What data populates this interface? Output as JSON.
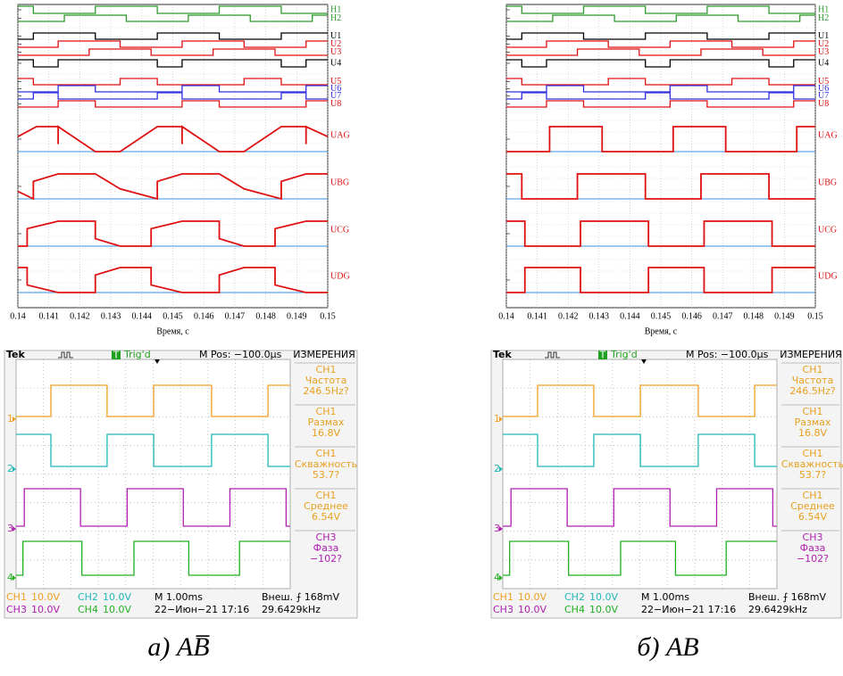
{
  "panels": [
    {
      "caption": "а) AB̅",
      "plot": {
        "type": "line",
        "xlim": [
          0.14,
          0.15
        ],
        "xticks": [
          0.14,
          0.141,
          0.142,
          0.143,
          0.144,
          0.145,
          0.146,
          0.147,
          0.148,
          0.149,
          0.15
        ],
        "xlabel": "Время, c",
        "signals": [
          {
            "name": "H1",
            "color": "#2e9a2e",
            "kind": "digital",
            "start": 1,
            "edges": [
              0.1405,
              0.1425,
              0.1445,
              0.1465,
              0.1485
            ]
          },
          {
            "name": "H2",
            "color": "#2e9a2e",
            "kind": "digital",
            "start": 0,
            "edges": [
              0.1415,
              0.1435,
              0.1455,
              0.1475,
              0.1495
            ]
          },
          {
            "name": "U1",
            "color": "#000000",
            "kind": "digital",
            "start": 0,
            "edges": [
              0.1405,
              0.1425,
              0.1445,
              0.1465,
              0.1485
            ]
          },
          {
            "name": "U2",
            "color": "#e01010",
            "kind": "digital",
            "start": 0,
            "edges": [
              0.1413,
              0.1433,
              0.1453,
              0.1473,
              0.1493
            ]
          },
          {
            "name": "U3",
            "color": "#e01010",
            "kind": "digital",
            "start": 0,
            "edges": [
              0.1423,
              0.1443,
              0.1463,
              0.1483
            ]
          },
          {
            "name": "U4",
            "color": "#000000",
            "kind": "digital",
            "start": 1,
            "edges": [
              0.1405,
              0.1413,
              0.1445,
              0.1453,
              0.1485,
              0.1493
            ]
          },
          {
            "name": "U5",
            "color": "#e01010",
            "kind": "digital",
            "start": 1,
            "edges": [
              0.1405,
              0.1433,
              0.1445,
              0.1473,
              0.1485
            ]
          },
          {
            "name": "U6",
            "color": "#3030e0",
            "kind": "digital",
            "start": 0,
            "edges": [
              0.1413,
              0.1425,
              0.1453,
              0.1465,
              0.1493
            ]
          },
          {
            "name": "U7",
            "color": "#3030e0",
            "kind": "digital",
            "start": 0,
            "edges": [
              0.1405,
              0.1413,
              0.1445,
              0.1453,
              0.1485,
              0.1493
            ]
          },
          {
            "name": "U8",
            "color": "#e01010",
            "kind": "digital",
            "start": 0,
            "edges": [
              0.1413,
              0.1425,
              0.1453,
              0.1465,
              0.1493
            ]
          },
          {
            "name": "UAG",
            "color": "#e01010",
            "kind": "analog",
            "x": [
              0.14,
              0.1406,
              0.1413,
              0.1413,
              0.1413,
              0.1425,
              0.1433,
              0.1445,
              0.1453,
              0.1453,
              0.1453,
              0.1465,
              0.1473,
              0.1485,
              0.1493,
              0.1493,
              0.1493,
              0.15
            ],
            "y": [
              0.6,
              1,
              1,
              0.3,
              1,
              0,
              0,
              1,
              1,
              0.3,
              1,
              0,
              0,
              1,
              1,
              0.3,
              1,
              0.6
            ]
          },
          {
            "name": "UBG",
            "color": "#e01010",
            "kind": "analog",
            "x": [
              0.14,
              0.1405,
              0.1405,
              0.1413,
              0.1425,
              0.1433,
              0.1445,
              0.1445,
              0.1453,
              0.1465,
              0.1473,
              0.1485,
              0.1485,
              0.1493,
              0.15
            ],
            "y": [
              0.3,
              0,
              0.7,
              1,
              1,
              0.4,
              0,
              0.7,
              1,
              1,
              0.4,
              0,
              0.7,
              1,
              1
            ]
          },
          {
            "name": "UCG",
            "color": "#e01010",
            "kind": "analog",
            "x": [
              0.14,
              0.1403,
              0.1403,
              0.1413,
              0.1425,
              0.1425,
              0.1433,
              0.1443,
              0.1443,
              0.1453,
              0.1465,
              0.1465,
              0.1473,
              0.1483,
              0.1483,
              0.1493,
              0.15
            ],
            "y": [
              0,
              0,
              0.7,
              1,
              1,
              0.3,
              0,
              0,
              0.7,
              1,
              1,
              0.3,
              0,
              0,
              0.7,
              1,
              1
            ]
          },
          {
            "name": "UDG",
            "color": "#e01010",
            "kind": "analog",
            "x": [
              0.14,
              0.1403,
              0.1403,
              0.1413,
              0.1425,
              0.1425,
              0.1433,
              0.1443,
              0.1443,
              0.1453,
              0.1465,
              0.1465,
              0.1473,
              0.1483,
              0.1483,
              0.1493,
              0.15
            ],
            "y": [
              1,
              1,
              0.3,
              0,
              0,
              0.7,
              1,
              1,
              0.3,
              0,
              0,
              0.7,
              1,
              1,
              0.3,
              0,
              0
            ]
          }
        ]
      },
      "scope": {
        "brand": "Tek",
        "trig_icon": "T",
        "trig": "Trig'd",
        "mpos": "M Pos: −100.0µs",
        "menu": "ИЗМЕРЕНИЯ",
        "measurements": [
          {
            "ch": "CH1",
            "label": "Частота",
            "value": "246.5Hz?"
          },
          {
            "ch": "CH1",
            "label": "Размах",
            "value": "16.8V"
          },
          {
            "ch": "CH1",
            "label": "Скважность",
            "value": "53.7?"
          },
          {
            "ch": "CH1",
            "label": "Среднее",
            "value": "6.54V"
          },
          {
            "ch": "CH3",
            "label": "Фаза",
            "value": "−102?"
          }
        ],
        "channels": [
          {
            "name": "CH1",
            "scale": "10.0V",
            "marker": "1",
            "color": "#f0a020",
            "start": 0,
            "edges": [
              1.27,
              3.32,
              5.02,
              7.13,
              9.19
            ]
          },
          {
            "name": "CH2",
            "scale": "10.0V",
            "marker": "2",
            "color": "#20b8b8",
            "start": 1,
            "edges": [
              1.27,
              3.32,
              5.02,
              7.13,
              9.19
            ]
          },
          {
            "name": "CH3",
            "scale": "10.0V",
            "marker": "3",
            "color": "#b020b0",
            "start": 0,
            "edges": [
              0.3,
              2.35,
              4.05,
              6.1,
              7.8,
              9.85
            ]
          },
          {
            "name": "CH4",
            "scale": "10.0V",
            "marker": "4",
            "color": "#20b020",
            "start": 0,
            "edges": [
              0.25,
              2.4,
              4.3,
              6.3,
              8.15
            ]
          }
        ],
        "timebase": "M 1.00ms",
        "date": "22−Июн−21 17:16",
        "trigger": "Внеш. ⨍ 168mV",
        "freq": "29.6429kHz"
      }
    },
    {
      "caption": "б) AB",
      "plot": {
        "type": "line",
        "xlim": [
          0.14,
          0.15
        ],
        "xticks": [
          0.14,
          0.141,
          0.142,
          0.143,
          0.144,
          0.145,
          0.146,
          0.147,
          0.148,
          0.149,
          0.15
        ],
        "xlabel": "Время, c",
        "signals": [
          {
            "name": "H1",
            "color": "#2e9a2e",
            "kind": "digital",
            "start": 1,
            "edges": [
              0.1405,
              0.1425,
              0.1445,
              0.1465,
              0.1485
            ]
          },
          {
            "name": "H2",
            "color": "#2e9a2e",
            "kind": "digital",
            "start": 0,
            "edges": [
              0.1415,
              0.1435,
              0.1455,
              0.1475,
              0.1495
            ]
          },
          {
            "name": "U1",
            "color": "#000000",
            "kind": "digital",
            "start": 0,
            "edges": [
              0.1405,
              0.1425,
              0.1445,
              0.1465,
              0.1485
            ]
          },
          {
            "name": "U2",
            "color": "#e01010",
            "kind": "digital",
            "start": 0,
            "edges": [
              0.1413,
              0.1433,
              0.1453,
              0.1473,
              0.1493
            ]
          },
          {
            "name": "U3",
            "color": "#e01010",
            "kind": "digital",
            "start": 0,
            "edges": [
              0.1423,
              0.1443,
              0.1463,
              0.1483
            ]
          },
          {
            "name": "U4",
            "color": "#000000",
            "kind": "digital",
            "start": 1,
            "edges": [
              0.1405,
              0.1413,
              0.1445,
              0.1453,
              0.1485,
              0.1493
            ]
          },
          {
            "name": "U5",
            "color": "#e01010",
            "kind": "digital",
            "start": 1,
            "edges": [
              0.1405,
              0.1433,
              0.1445,
              0.1473,
              0.1485
            ]
          },
          {
            "name": "U6",
            "color": "#3030e0",
            "kind": "digital",
            "start": 0,
            "edges": [
              0.1413,
              0.1425,
              0.1453,
              0.1465,
              0.1493
            ]
          },
          {
            "name": "U7",
            "color": "#3030e0",
            "kind": "digital",
            "start": 0,
            "edges": [
              0.1405,
              0.1413,
              0.1445,
              0.1453,
              0.1485,
              0.1493
            ]
          },
          {
            "name": "U8",
            "color": "#e01010",
            "kind": "digital",
            "start": 0,
            "edges": [
              0.1413,
              0.1425,
              0.1453,
              0.1465,
              0.1493
            ]
          },
          {
            "name": "UAG",
            "color": "#e01010",
            "kind": "digital",
            "start": 0,
            "edges": [
              0.1414,
              0.1431,
              0.1454,
              0.1471,
              0.1494
            ]
          },
          {
            "name": "UBG",
            "color": "#e01010",
            "kind": "digital",
            "start": 1,
            "edges": [
              0.1405,
              0.1423,
              0.1445,
              0.1463,
              0.1485
            ]
          },
          {
            "name": "UCG",
            "color": "#e01010",
            "kind": "digital",
            "start": 1,
            "edges": [
              0.1406,
              0.1424,
              0.1446,
              0.1464,
              0.1486
            ]
          },
          {
            "name": "UDG",
            "color": "#e01010",
            "kind": "digital",
            "start": 0,
            "edges": [
              0.1406,
              0.1424,
              0.1446,
              0.1464,
              0.1486
            ]
          }
        ]
      },
      "scope": {
        "brand": "Tek",
        "trig_icon": "T",
        "trig": "Trig'd",
        "mpos": "M Pos: −100.0µs",
        "menu": "ИЗМЕРЕНИЯ",
        "measurements": [
          {
            "ch": "CH1",
            "label": "Частота",
            "value": "246.5Hz?"
          },
          {
            "ch": "CH1",
            "label": "Размах",
            "value": "16.8V"
          },
          {
            "ch": "CH1",
            "label": "Скважность",
            "value": "53.7?"
          },
          {
            "ch": "CH1",
            "label": "Среднее",
            "value": "6.54V"
          },
          {
            "ch": "CH3",
            "label": "Фаза",
            "value": "−102?"
          }
        ],
        "channels": [
          {
            "name": "CH1",
            "scale": "10.0V",
            "marker": "1",
            "color": "#f0a020",
            "start": 0,
            "edges": [
              1.27,
              3.32,
              5.02,
              7.13,
              9.19
            ]
          },
          {
            "name": "CH2",
            "scale": "10.0V",
            "marker": "2",
            "color": "#20b8b8",
            "start": 1,
            "edges": [
              1.27,
              3.32,
              5.02,
              7.13,
              9.19
            ]
          },
          {
            "name": "CH3",
            "scale": "10.0V",
            "marker": "3",
            "color": "#b020b0",
            "start": 0,
            "edges": [
              0.3,
              2.35,
              4.05,
              6.1,
              7.8,
              9.85
            ]
          },
          {
            "name": "CH4",
            "scale": "10.0V",
            "marker": "4",
            "color": "#20b020",
            "start": 0,
            "edges": [
              0.25,
              2.4,
              4.3,
              6.3,
              8.15
            ]
          }
        ],
        "timebase": "M 1.00ms",
        "date": "22−Июн−21 17:16",
        "trigger": "Внеш. ⨍ 168mV",
        "freq": "29.6429kHz"
      }
    }
  ]
}
